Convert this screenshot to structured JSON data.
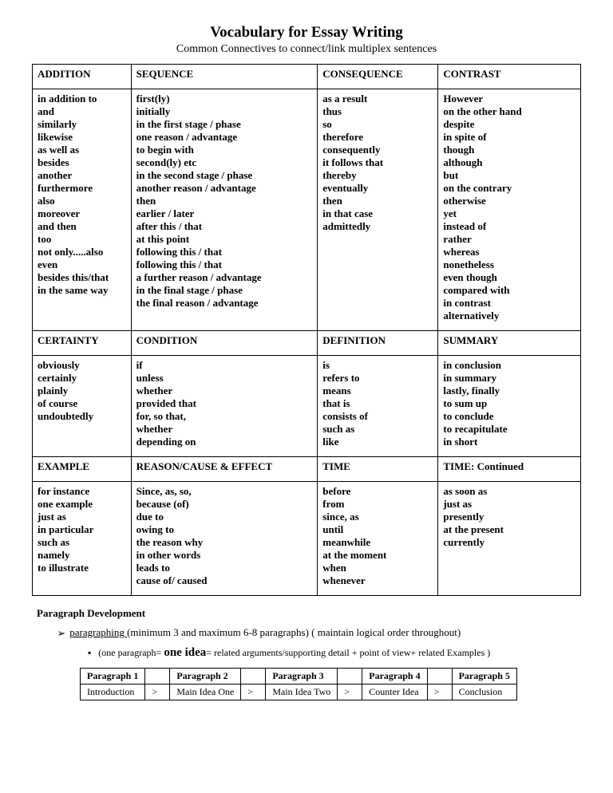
{
  "title": "Vocabulary for Essay Writing",
  "subtitle": "Common Connectives to connect/link multiplex sentences",
  "headers": {
    "r1c1": "ADDITION",
    "r1c2": "SEQUENCE",
    "r1c3": "CONSEQUENCE",
    "r1c4": "CONTRAST",
    "r2c1": "CERTAINTY",
    "r2c2": "CONDITION",
    "r2c3": "DEFINITION",
    "r2c4": "SUMMARY",
    "r3c1": "EXAMPLE",
    "r3c2": "REASON/CAUSE & EFFECT",
    "r3c3": "TIME",
    "r3c4": "TIME: Continued"
  },
  "cells": {
    "addition": "in addition to\nand\nsimilarly\nlikewise\nas well as\nbesides\nanother\nfurthermore\nalso\nmoreover\nand then\ntoo\nnot only.....also\neven\nbesides this/that\nin the same way",
    "sequence": "first(ly)\ninitially\nin the first stage / phase\none reason / advantage\nto begin with\nsecond(ly) etc\nin the second stage / phase\nanother reason / advantage\nthen\nearlier / later\nafter this / that\nat this point\nfollowing this / that\nfollowing this / that\na further reason / advantage\nin the final stage / phase\nthe final reason / advantage",
    "consequence": "as a result\nthus\nso\ntherefore\nconsequently\nit follows that\nthereby\neventually\nthen\nin that case\nadmittedly",
    "contrast": "However\non the other hand\ndespite\nin spite of\nthough\nalthough\nbut\non the contrary\notherwise\nyet\ninstead of\nrather\nwhereas\nnonetheless\neven though\ncompared with\nin contrast\nalternatively",
    "certainty": "obviously\ncertainly\nplainly\nof course\nundoubtedly",
    "condition": "if\nunless\nwhether\nprovided that\nfor,  so that,\nwhether\ndepending on",
    "definition": "is\nrefers to\nmeans\nthat is\nconsists of\nsuch as\nlike",
    "summary": "in conclusion\nin summary\nlastly, finally\nto sum up\nto conclude\nto recapitulate\nin short",
    "example": "for instance\none example\njust as\nin particular\nsuch as\nnamely\nto illustrate",
    "reason": "Since,    as,      so,\nbecause (of)\ndue to\nowing to\nthe reason why\nin other words\nleads to\ncause of/ caused",
    "time": "before\nfrom\nsince,  as\nuntil\nmeanwhile\nat the moment\nwhen\nwhenever",
    "timecont": "as soon as\njust as\npresently\nat the present\ncurrently"
  },
  "paradev": "Paragraph Development",
  "bullet1_pre": "paragraphing ",
  "bullet1_post": "(minimum 3 and maximum 6-8 paragraphs)  ( maintain logical order throughout)",
  "subbullet_pre": "(one paragraph= ",
  "subbullet_mid": "one idea",
  "subbullet_post": "= related arguments/supporting detail + point of view+ related Examples )",
  "parags": {
    "h1": "Paragraph 1",
    "h2": "Paragraph 2",
    "h3": "Paragraph 3",
    "h4": "Paragraph 4",
    "h5": "Paragraph 5",
    "c1": "Introduction",
    "c2": "Main Idea One",
    "c3": "Main Idea Two",
    "c4": "Counter Idea",
    "c5": "Conclusion",
    "gt": ">"
  }
}
